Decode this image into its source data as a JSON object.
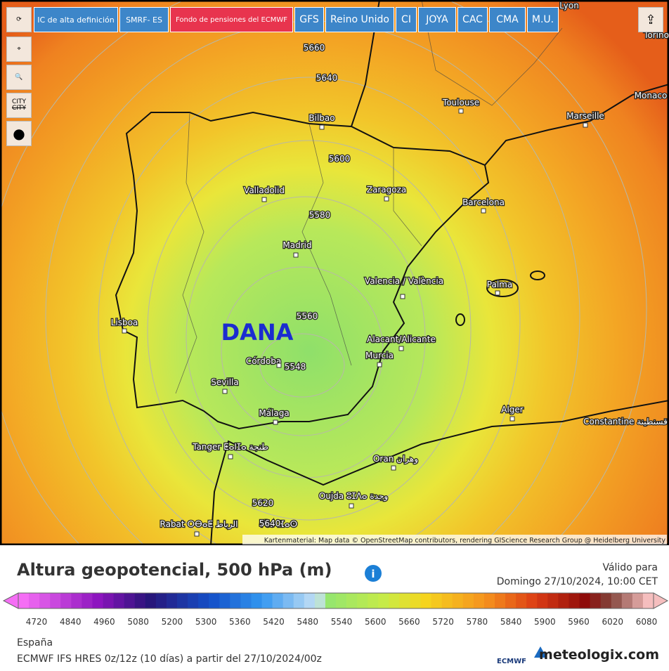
{
  "toolbar": {
    "tabs": [
      "IC de alta definición",
      "SMRF- ES",
      "Fondo de pensiones del ECMWF",
      "GFS",
      "Reino Unido",
      "CI",
      "JOYA",
      "CAC",
      "CMA",
      "M.U."
    ],
    "city_button": "CITY"
  },
  "map": {
    "cities": [
      "Lyon",
      "Torino",
      "Toulouse",
      "Monaco",
      "Marseille",
      "Bilbao",
      "Valladolid",
      "Zaragoza",
      "Barcelona",
      "Madrid",
      "Valencia / València",
      "Palma",
      "Lisboa",
      "Alacant/Alicante",
      "Murcia",
      "Córdoba",
      "Sevilla",
      "Málaga",
      "Alger",
      "Constantine قسنطينة",
      "Tanger ⵟⴰⵏⵊⴰ طنجة",
      "Oran وهران",
      "Oujda ⵓⵊⴷⴰ وجدة",
      "Rabat ⵔⴱⴰⵟ الرباط",
      "Fès ⴼⴰⵙ"
    ],
    "contour_labels": [
      "5660",
      "5640",
      "5600",
      "5580",
      "5560",
      "5548",
      "5620",
      "5640"
    ],
    "annotation": "DANA",
    "attribution": "Kartenmaterial: Map data © OpenStreetMap contributors, rendering GIScience Research Group @ Heidelberg University"
  },
  "legend": {
    "title": "Altura geopotencial, 500 hPa (m)",
    "valid_label": "Válido para",
    "valid_time": "Domingo 27/10/2024, 10:00 CET",
    "scale": [
      4720,
      4840,
      4960,
      5080,
      5200,
      5300,
      5360,
      5420,
      5480,
      5540,
      5600,
      5660,
      5720,
      5780,
      5840,
      5900,
      5960,
      6020,
      6080
    ],
    "region": "España",
    "model": "ECMWF IFS HRES 0z/12z (10 días) a partir del 27/10/2024/00z",
    "logo_ecmwf": "ECMWF",
    "logo_site": "meteologix.com"
  }
}
